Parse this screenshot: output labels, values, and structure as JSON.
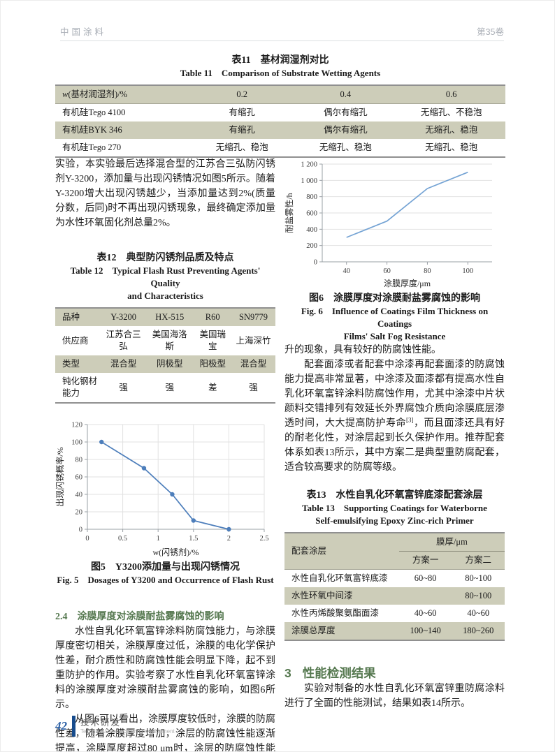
{
  "header": {
    "journal": "中国涂料",
    "volume": "第35卷"
  },
  "footer": {
    "page_number": "42",
    "section_cn": "技术研发",
    "section_en": "Technical Research and Development"
  },
  "table11": {
    "title_cn": "表11　基材润湿剂对比",
    "title_en": "Table 11　Comparison of Substrate Wetting Agents",
    "header_w": "w",
    "header_rest": "(基材润湿剂)/%",
    "header": [
      "0.2",
      "0.4",
      "0.6"
    ],
    "rows": [
      [
        "有机硅Tego 4100",
        "有缩孔",
        "偶尔有缩孔",
        "无缩孔、不稳泡"
      ],
      [
        "有机硅BYK 346",
        "有缩孔",
        "偶尔有缩孔",
        "无缩孔、稳泡"
      ],
      [
        "有机硅Tego 270",
        "无缩孔、稳泡",
        "无缩孔、稳泡",
        "无缩孔、稳泡"
      ]
    ]
  },
  "left": {
    "para1": "实验，本实验最后选择混合型的江苏合三弘防闪锈剂Y-3200，添加量与出现闪锈情况如图5所示。随着Y-3200增大出现闪锈越少，当添加量达到2%(质量分数，后同)时不再出现闪锈现象，最终确定添加量为水性环氧固化剂总量2%。"
  },
  "table12": {
    "title_cn": "表12　典型防闪锈剂品质及特点",
    "title_en_1": "Table 12　Typical Flash Rust Preventing Agents' Quality",
    "title_en_2": "and Characteristics",
    "header": [
      "品种",
      "Y-3200",
      "HX-515",
      "R60",
      "SN9779"
    ],
    "rows": [
      [
        "供应商",
        "江苏合三弘",
        "美国海洛斯",
        "美国瑞宝",
        "上海深竹"
      ],
      [
        "类型",
        "混合型",
        "阴极型",
        "阳极型",
        "混合型"
      ],
      [
        "钝化钢材能力",
        "强",
        "强",
        "差",
        "强"
      ]
    ]
  },
  "fig5": {
    "caption_cn": "图5　Y3200添加量与出现闪锈情况",
    "caption_en": "Fig. 5　Dosages of Y3200 and Occurrence of Flash Rust"
  },
  "fig6": {
    "caption_cn": "图6　涂膜厚度对涂膜耐盐雾腐蚀的影响",
    "caption_en_1": "Fig. 6　Influence of Coatings Film Thickness on Coatings",
    "caption_en_2": "Films' Salt Fog Resistance"
  },
  "section24": {
    "heading": "2.4　涂膜厚度对涂膜耐盐雾腐蚀的影响",
    "para1": "水性自乳化环氧富锌涂料防腐蚀能力，与涂膜厚度密切相关，涂膜厚度过低，涂膜的电化学保护性差，耐介质性和防腐蚀性能会明显下降，起不到重防护的作用。实验考察了水性自乳化环氧富锌涂料的涂膜厚度对涂膜耐盐雾腐蚀的影响，如图6所示。",
    "para2": "从图6可以看出，涂膜厚度较低时，涂膜的防腐性差，随着涂膜厚度增加，涂层的防腐蚀性能逐渐提高，涂膜厚度超过80 μm时，涂层的防腐蚀性能有一个突"
  },
  "right": {
    "para1": "升的现象，具有较好的防腐蚀性能。",
    "para2_a": "配套面漆或者配套中涂漆再配套面漆的防腐蚀能力提高非常显著，中涂漆及面漆都有提高水性自乳化环氧富锌涂料防腐蚀作用，尤其中涂漆中片状颜料交错排列有效延长外界腐蚀介质向涂膜底层渗透时间，大大提高防护寿命",
    "para2_sup": "[3]",
    "para2_b": "，而且面漆还具有好的耐老化性，对涂层起到长久保护作用。推荐配套体系如表13所示，其中方案二是典型重防腐配套，适合较高要求的防腐等级。"
  },
  "table13": {
    "title_cn": "表13　水性自乳化环氧富锌底漆配套涂层",
    "title_en_1": "Table 13　Supporting Coatings for Waterborne",
    "title_en_2": "Self-emulsifying Epoxy Zinc-rich Primer",
    "col_header": "配套涂层",
    "span_header": "膜厚/μm",
    "sub_headers": [
      "方案一",
      "方案二"
    ],
    "rows": [
      [
        "水性自乳化环氧富锌底漆",
        "60~80",
        "80~100"
      ],
      [
        "水性环氧中间漆",
        "",
        "80~100"
      ],
      [
        "水性丙烯酸聚氨酯面漆",
        "40~60",
        "40~60"
      ],
      [
        "涂膜总厚度",
        "100~140",
        "180~260"
      ]
    ]
  },
  "section3": {
    "heading_num": "3",
    "heading": "性能检测结果",
    "para1": "实验对制备的水性自乳化环氧富锌重防腐涂料进行了全面的性能测试，结果如表14所示。"
  },
  "chart_data": [
    {
      "id": "fig6",
      "type": "line",
      "title": "涂膜厚度对涂膜耐盐雾腐蚀的影响",
      "x": [
        40,
        60,
        80,
        100
      ],
      "y": [
        300,
        500,
        900,
        1100
      ],
      "xlabel": "涂膜厚度/μm",
      "ylabel": "耐盐雾性/h",
      "xlim": [
        28,
        112
      ],
      "ylim": [
        0,
        1200
      ],
      "xticks": [
        40,
        60,
        80,
        100
      ],
      "xtick_labels": [
        "40",
        "60",
        "80",
        "100"
      ],
      "yticks": [
        0,
        200,
        400,
        600,
        800,
        1000,
        1200
      ],
      "ytick_labels": [
        "0",
        "200",
        "400",
        "600",
        "800",
        "1 000",
        "1 200"
      ],
      "grid_y": true,
      "grid_x": false,
      "markers": false,
      "line_color": "#74a3d4",
      "axis_color": "#9aa0a6",
      "legend": "none"
    },
    {
      "id": "fig5",
      "type": "line",
      "title": "Y3200添加量与出现闪锈情况",
      "x": [
        0.2,
        0.8,
        1.2,
        1.5,
        2.0
      ],
      "y": [
        100,
        70,
        40,
        10,
        0
      ],
      "xlabel": "w(闪锈剂)/%",
      "ylabel": "出现闪锈概率/%",
      "xlim": [
        0,
        2.5
      ],
      "ylim": [
        0,
        120
      ],
      "xticks": [
        0,
        0.5,
        1,
        1.5,
        2,
        2.5
      ],
      "xtick_labels": [
        "0",
        "0.5",
        "1",
        "1.5",
        "2",
        "2.5"
      ],
      "yticks": [
        0,
        20,
        40,
        60,
        80,
        100,
        120
      ],
      "ytick_labels": [
        "0",
        "20",
        "40",
        "60",
        "80",
        "100",
        "120"
      ],
      "grid_y": true,
      "grid_x": true,
      "markers": true,
      "line_color": "#4d7ebb",
      "axis_color": "#9aa0a6",
      "legend": "none"
    }
  ]
}
